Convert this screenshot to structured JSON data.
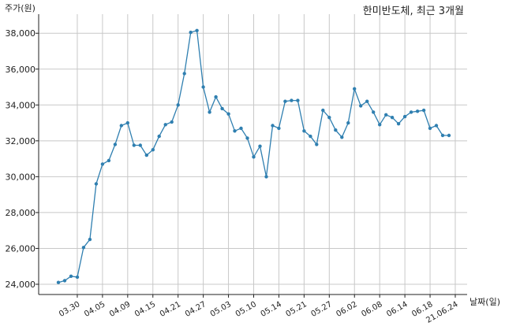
{
  "chart_data": {
    "type": "line",
    "title": "한미반도체, 최근 3개월",
    "ylabel": "주가(원)",
    "xlabel": "날짜(일)",
    "ylim": [
      24000,
      38800
    ],
    "yticks": [
      24000,
      26000,
      28000,
      30000,
      32000,
      34000,
      36000,
      38000
    ],
    "ytick_labels": [
      "24,000",
      "26,000",
      "28,000",
      "30,000",
      "32,000",
      "34,000",
      "36,000",
      "38,000"
    ],
    "xtick_labels": [
      "03.30",
      "04.05",
      "04.09",
      "04.15",
      "04.21",
      "04.27",
      "05.03",
      "05.10",
      "05.14",
      "05.21",
      "05.27",
      "06.02",
      "06.08",
      "06.14",
      "06.18",
      "21.06.24"
    ],
    "xtick_positions": [
      3,
      7,
      11,
      15,
      19,
      23,
      27,
      31,
      35,
      39,
      43,
      47,
      51,
      55,
      59,
      63
    ],
    "grid": true,
    "colors": {
      "line": "#2f7fb0",
      "grid": "#c8c8c8",
      "axis": "#222222"
    },
    "series": [
      {
        "values": [
          24100,
          24200,
          24450,
          24400,
          26050,
          26500,
          29600,
          30700,
          30900,
          31800,
          32850,
          33000,
          31750,
          31750,
          31200,
          31500,
          32250,
          32900,
          33050,
          34000,
          35750,
          38050,
          38150,
          35000,
          33600,
          34450,
          33800,
          33500,
          32550,
          32700,
          32150,
          31100,
          31700,
          30000,
          32850,
          32700,
          34200,
          34250,
          34250,
          32550,
          32250,
          31800,
          33700,
          33300,
          32600,
          32200,
          33000,
          34900,
          33950,
          34200,
          33600,
          32900,
          33450,
          33300,
          32950,
          33350,
          33600,
          33650,
          33700,
          32700,
          32850,
          32300,
          32300
        ]
      }
    ]
  }
}
